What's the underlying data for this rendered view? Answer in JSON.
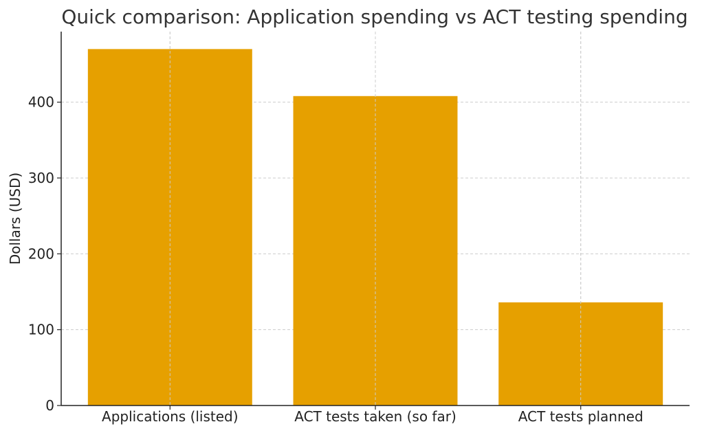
{
  "chart_data": {
    "type": "bar",
    "title": "Quick comparison: Application spending vs ACT testing spending",
    "xlabel": "",
    "ylabel": "Dollars (USD)",
    "categories": [
      "Applications (listed)",
      "ACT tests taken (so far)",
      "ACT tests planned"
    ],
    "values": [
      470,
      408,
      136
    ],
    "ylim": [
      0,
      493
    ],
    "yticks": [
      0,
      100,
      200,
      300,
      400
    ],
    "grid": true,
    "bar_color": "#e6a000"
  }
}
